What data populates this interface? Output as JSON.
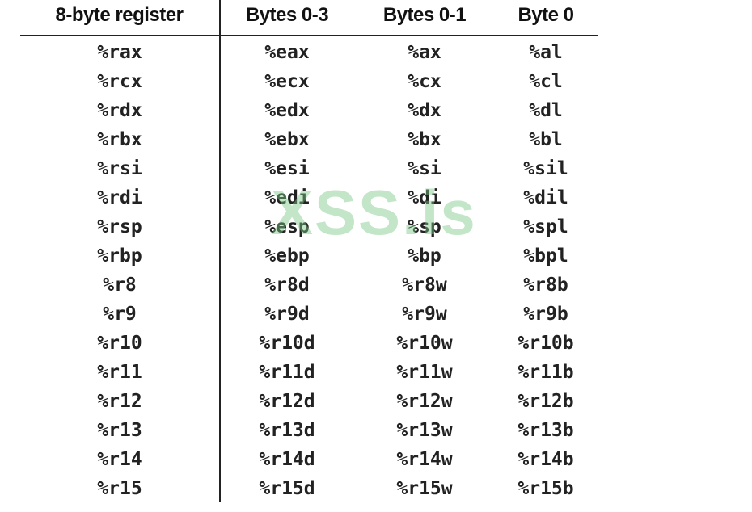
{
  "headers": [
    "8-byte register",
    "Bytes 0-3",
    "Bytes 0-1",
    "Byte 0"
  ],
  "rows": [
    [
      "%rax",
      "%eax",
      "%ax",
      "%al"
    ],
    [
      "%rcx",
      "%ecx",
      "%cx",
      "%cl"
    ],
    [
      "%rdx",
      "%edx",
      "%dx",
      "%dl"
    ],
    [
      "%rbx",
      "%ebx",
      "%bx",
      "%bl"
    ],
    [
      "%rsi",
      "%esi",
      "%si",
      "%sil"
    ],
    [
      "%rdi",
      "%edi",
      "%di",
      "%dil"
    ],
    [
      "%rsp",
      "%esp",
      "%sp",
      "%spl"
    ],
    [
      "%rbp",
      "%ebp",
      "%bp",
      "%bpl"
    ],
    [
      "%r8",
      "%r8d",
      "%r8w",
      "%r8b"
    ],
    [
      "%r9",
      "%r9d",
      "%r9w",
      "%r9b"
    ],
    [
      "%r10",
      "%r10d",
      "%r10w",
      "%r10b"
    ],
    [
      "%r11",
      "%r11d",
      "%r11w",
      "%r11b"
    ],
    [
      "%r12",
      "%r12d",
      "%r12w",
      "%r12b"
    ],
    [
      "%r13",
      "%r13d",
      "%r13w",
      "%r13b"
    ],
    [
      "%r14",
      "%r14d",
      "%r14w",
      "%r14b"
    ],
    [
      "%r15",
      "%r15d",
      "%r15w",
      "%r15b"
    ]
  ],
  "watermark": "XSS.is",
  "watermark_color": "#78c882"
}
